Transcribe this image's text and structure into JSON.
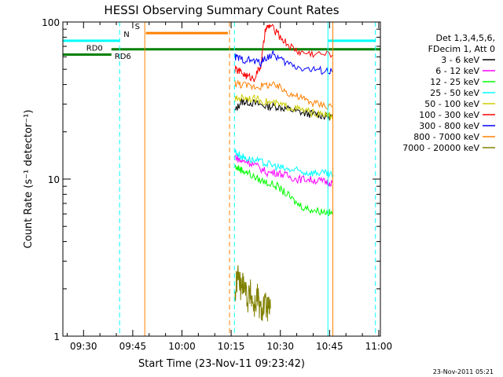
{
  "chart_data": {
    "type": "line",
    "title": "HESSI Observing Summary Count Rates",
    "xlabel": "Start Time (23-Nov-11 09:23:42)",
    "ylabel": "Count Rate (s⁻¹ detector⁻¹)",
    "y_scale": "log",
    "ylim": [
      1,
      100
    ],
    "xlim": [
      "09:23:42",
      "11:00:30"
    ],
    "x_ticks": [
      "09:30",
      "09:45",
      "10:00",
      "10:15",
      "10:30",
      "10:45",
      "11:00"
    ],
    "y_ticks": [
      "1",
      "10",
      "100"
    ],
    "footer": "23-Nov-2011 05:21",
    "legend": {
      "placement": "right",
      "header": [
        "Det 1,3,4,5,6,",
        "FDecim 1, Att 0"
      ],
      "entries": [
        {
          "label": "3 - 6 keV",
          "color": "#000000"
        },
        {
          "label": "6 - 12 keV",
          "color": "#ff00ff"
        },
        {
          "label": "12 - 25 keV",
          "color": "#00ff00"
        },
        {
          "label": "25 - 50 keV",
          "color": "#00ffff"
        },
        {
          "label": "50 - 100 keV",
          "color": "#cccc00"
        },
        {
          "label": "100 - 300 keV",
          "color": "#ff0000"
        },
        {
          "label": "300 - 800 keV",
          "color": "#0000ff"
        },
        {
          "label": "800 - 7000 keV",
          "color": "#ff8000"
        },
        {
          "label": "7000 - 20000 keV",
          "color": "#808000"
        }
      ]
    },
    "flags": [
      {
        "label": "S",
        "color": "#ff8000",
        "level": 85,
        "segments": [
          [
            "09:49:00",
            "10:14:00"
          ]
        ]
      },
      {
        "label": "N",
        "color": "#00ffff",
        "level": 76,
        "segments": [
          [
            "09:23:42",
            "09:41:00"
          ],
          [
            "10:44:30",
            "10:59:00"
          ]
        ]
      },
      {
        "label": "RD0",
        "color": "#008000",
        "level": 62,
        "segments": [
          [
            "09:23:42",
            "09:38:30"
          ]
        ]
      },
      {
        "label": "RD6",
        "color": "#008000",
        "level": 67,
        "segments": [
          [
            "09:38:30",
            "11:00:30"
          ]
        ]
      }
    ],
    "event_lines": [
      {
        "time": "09:41:00",
        "color": "#00ffff",
        "style": "dashed"
      },
      {
        "time": "09:48:40",
        "color": "#ff8000",
        "style": "solid"
      },
      {
        "time": "10:14:30",
        "color": "#ff8000",
        "style": "dashed"
      },
      {
        "time": "10:16:00",
        "color": "#00ffff",
        "style": "dashed"
      },
      {
        "time": "10:44:30",
        "color": "#00ffff",
        "style": "solid"
      },
      {
        "time": "10:46:00",
        "color": "#ff8000",
        "style": "solid"
      },
      {
        "time": "10:59:00",
        "color": "#00ffff",
        "style": "dashed"
      }
    ],
    "series": [
      {
        "name": "3 - 6 keV",
        "color": "#000000",
        "x": [
          "10:16:10",
          "10:18:00",
          "10:20:00",
          "10:23:00",
          "10:26:00",
          "10:29:00",
          "10:32:00",
          "10:35:00",
          "10:38:00",
          "10:41:00",
          "10:44:00",
          "10:46:00"
        ],
        "values": [
          27,
          31,
          31,
          30,
          29,
          29,
          28,
          27,
          26,
          26,
          25,
          25
        ]
      },
      {
        "name": "6 - 12 keV",
        "color": "#ff00ff",
        "x": [
          "10:16:10",
          "10:18:00",
          "10:20:00",
          "10:23:00",
          "10:26:00",
          "10:29:00",
          "10:32:00",
          "10:35:00",
          "10:38:00",
          "10:41:00",
          "10:44:00",
          "10:46:00"
        ],
        "values": [
          14,
          13,
          13,
          12,
          11,
          11,
          10.5,
          10,
          10,
          9.8,
          9.6,
          9.5
        ]
      },
      {
        "name": "12 - 25 keV",
        "color": "#00ff00",
        "x": [
          "10:16:10",
          "10:18:00",
          "10:20:00",
          "10:23:00",
          "10:26:00",
          "10:29:00",
          "10:32:00",
          "10:35:00",
          "10:38:00",
          "10:41:00",
          "10:44:00",
          "10:46:00"
        ],
        "values": [
          12,
          11.5,
          11,
          10,
          9.5,
          9,
          8,
          7,
          6.5,
          6.3,
          6.2,
          6
        ]
      },
      {
        "name": "25 - 50 keV",
        "color": "#00ffff",
        "x": [
          "10:16:10",
          "10:18:00",
          "10:20:00",
          "10:23:00",
          "10:26:00",
          "10:29:00",
          "10:32:00",
          "10:35:00",
          "10:38:00",
          "10:41:00",
          "10:44:00",
          "10:46:00"
        ],
        "values": [
          15,
          14,
          13.5,
          13,
          12.5,
          12,
          11.5,
          11.3,
          11,
          11,
          10.8,
          10.5
        ]
      },
      {
        "name": "50 - 100 keV",
        "color": "#cccc00",
        "x": [
          "10:16:10",
          "10:18:00",
          "10:20:00",
          "10:23:00",
          "10:26:00",
          "10:29:00",
          "10:32:00",
          "10:35:00",
          "10:38:00",
          "10:41:00",
          "10:44:00",
          "10:46:00"
        ],
        "values": [
          32,
          33,
          33,
          32,
          31,
          30,
          29,
          28,
          27,
          26,
          25.5,
          25
        ]
      },
      {
        "name": "100 - 300 keV",
        "color": "#ff0000",
        "x": [
          "10:16:10",
          "10:18:00",
          "10:20:00",
          "10:22:00",
          "10:24:00",
          "10:25:30",
          "10:27:00",
          "10:30:00",
          "10:33:00",
          "10:36:00",
          "10:40:00",
          "10:46:00"
        ],
        "values": [
          50,
          48,
          45,
          44,
          52,
          90,
          95,
          80,
          70,
          64,
          63,
          62
        ]
      },
      {
        "name": "300 - 800 keV",
        "color": "#0000ff",
        "x": [
          "10:16:10",
          "10:18:00",
          "10:21:00",
          "10:24:00",
          "10:26:00",
          "10:28:00",
          "10:31:00",
          "10:35:00",
          "10:39:00",
          "10:43:00",
          "10:46:00"
        ],
        "values": [
          60,
          58,
          57,
          55,
          60,
          62,
          56,
          52,
          50,
          49,
          48
        ]
      },
      {
        "name": "800 - 7000 keV",
        "color": "#ff8000",
        "x": [
          "10:16:10",
          "10:18:00",
          "10:21:00",
          "10:24:00",
          "10:27:00",
          "10:30:00",
          "10:33:00",
          "10:36:00",
          "10:39:00",
          "10:42:00",
          "10:46:00"
        ],
        "values": [
          41,
          40,
          39,
          39,
          40,
          38,
          35,
          33,
          31,
          30,
          29
        ]
      },
      {
        "name": "7000 - 20000 keV",
        "color": "#808000",
        "x": [
          "10:16:10",
          "10:17:00",
          "10:18:00",
          "10:19:00",
          "10:20:00",
          "10:21:00",
          "10:22:00",
          "10:23:00",
          "10:24:00",
          "10:25:00",
          "10:26:00",
          "10:27:00"
        ],
        "values": [
          1.8,
          2.5,
          2.0,
          2.3,
          1.7,
          1.9,
          1.5,
          1.8,
          1.4,
          1.6,
          1.5,
          1.5
        ]
      }
    ]
  }
}
